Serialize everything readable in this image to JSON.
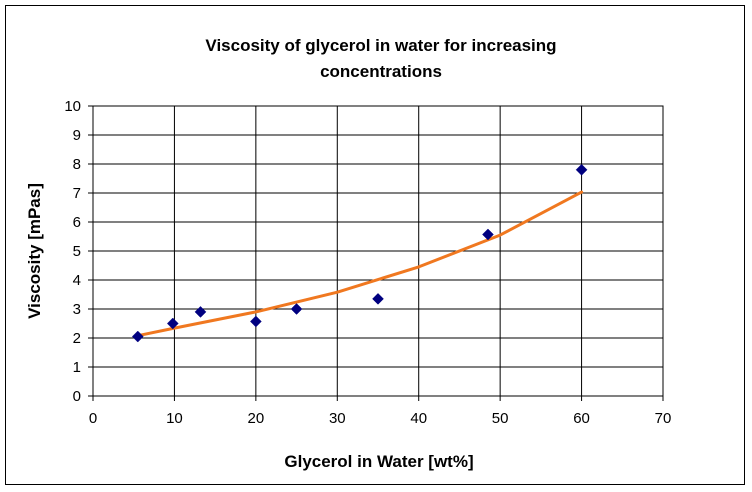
{
  "chart_data": {
    "type": "scatter",
    "title_line1": "Viscosity of glycerol in water for increasing",
    "title_line2": "concentrations",
    "xlabel": "Glycerol in Water [wt%]",
    "ylabel": "Viscosity [mPas]",
    "xlim": [
      0,
      70
    ],
    "ylim": [
      0,
      10
    ],
    "x_ticks": [
      0,
      10,
      20,
      30,
      40,
      50,
      60,
      70
    ],
    "y_ticks": [
      0,
      1,
      2,
      3,
      4,
      5,
      6,
      7,
      8,
      9,
      10
    ],
    "grid": true,
    "legend": "none",
    "series": [
      {
        "points": [
          {
            "x": 5.5,
            "y": 2.05
          },
          {
            "x": 9.8,
            "y": 2.5
          },
          {
            "x": 13.2,
            "y": 2.9
          },
          {
            "x": 20,
            "y": 2.57
          },
          {
            "x": 25,
            "y": 3.0
          },
          {
            "x": 35,
            "y": 3.35
          },
          {
            "x": 48.5,
            "y": 5.57
          },
          {
            "x": 60,
            "y": 7.8
          }
        ],
        "marker": "diamond",
        "color": "#000080"
      }
    ],
    "trendline": {
      "type": "exponential",
      "color": "#F07820",
      "x_range": [
        5.5,
        60
      ],
      "points": [
        {
          "x": 5.5,
          "y": 2.08
        },
        {
          "x": 10,
          "y": 2.34
        },
        {
          "x": 20,
          "y": 2.9
        },
        {
          "x": 30,
          "y": 3.58
        },
        {
          "x": 40,
          "y": 4.45
        },
        {
          "x": 50,
          "y": 5.55
        },
        {
          "x": 60,
          "y": 7.03
        }
      ]
    }
  }
}
